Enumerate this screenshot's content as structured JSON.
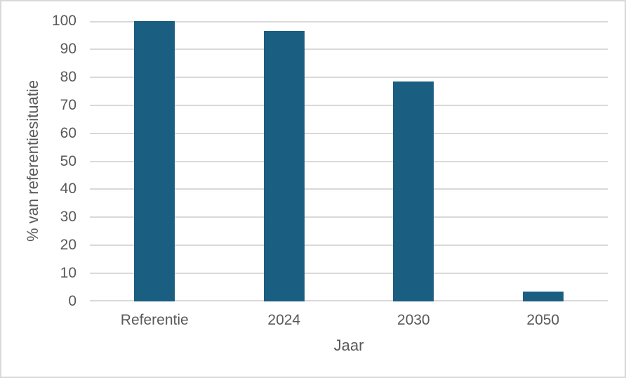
{
  "chart_data": {
    "type": "bar",
    "categories": [
      "Referentie",
      "2024",
      "2030",
      "2050"
    ],
    "values": [
      100,
      96.5,
      78.4,
      3.5
    ],
    "title": "",
    "xlabel": "Jaar",
    "ylabel": "% van referentiesituatie",
    "ylim": [
      0,
      100
    ],
    "yticks": [
      0,
      10,
      20,
      30,
      40,
      50,
      60,
      70,
      80,
      90,
      100
    ],
    "grid": true,
    "legend": "none",
    "colors": {
      "bar": "#1A5E82",
      "gridline": "#D9D9D9",
      "axis_line": "#D9D9D9",
      "text": "#595959",
      "chart_border": "#D9D9D9",
      "background": "#FFFFFF"
    }
  }
}
